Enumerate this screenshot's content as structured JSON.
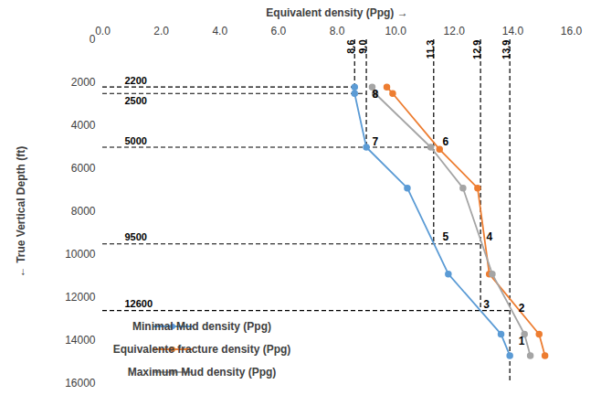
{
  "chart_data": {
    "type": "line",
    "x_label": "Equivalent density (Ppg)",
    "y_label": "True Vertical Depth (ft)",
    "xlim": [
      0,
      16
    ],
    "xticks": [
      {
        "value": 0,
        "label": "0.0"
      },
      {
        "value": 2,
        "label": "2.0"
      },
      {
        "value": 4,
        "label": "4.0"
      },
      {
        "value": 6,
        "label": "6.0"
      },
      {
        "value": 8,
        "label": "8.0"
      },
      {
        "value": 10,
        "label": "10.0"
      },
      {
        "value": 12,
        "label": "12.0"
      },
      {
        "value": 14,
        "label": "14.0"
      },
      {
        "value": 16,
        "label": "16.0"
      }
    ],
    "ylim": [
      0,
      16000
    ],
    "yticks": [
      0,
      2000,
      4000,
      6000,
      8000,
      10000,
      12000,
      14000,
      16000
    ],
    "grid": false,
    "legend": "bottom-left",
    "marker": "circle",
    "series": [
      {
        "name": "Minimal Mud density (Ppg)",
        "color": "#5b9bd5",
        "x": [
          8.6,
          8.6,
          9.0,
          10.4,
          11.8,
          13.6,
          13.9
        ],
        "values": [
          2200,
          2500,
          5000,
          6900,
          10900,
          13700,
          14700
        ]
      },
      {
        "name": "Equivalente fracture density (Ppg)",
        "color": "#ed7d31",
        "x": [
          9.7,
          9.9,
          11.5,
          12.8,
          13.2,
          14.9,
          15.1
        ],
        "values": [
          2200,
          2500,
          5100,
          6900,
          10900,
          13700,
          14700
        ]
      },
      {
        "name": "Maximum Mud density (Ppg)",
        "color": "#a5a5a5",
        "x": [
          9.2,
          9.3,
          11.2,
          12.3,
          13.3,
          14.4,
          14.6
        ],
        "values": [
          2200,
          2500,
          5000,
          6900,
          10900,
          13700,
          14700
        ]
      }
    ],
    "density_lines": [
      8.6,
      {
        "value": 9,
        "label": "9.0"
      },
      11.3,
      12.9,
      13.9
    ],
    "depth_lines": [
      2200,
      2500,
      5000,
      9500,
      12600
    ],
    "annotations": [
      {
        "text": "1",
        "x": 14.2,
        "y": 14040
      },
      {
        "text": "2",
        "x": 14.2,
        "y": 12500
      },
      {
        "text": "3",
        "x": 13.0,
        "y": 12340
      },
      {
        "text": "4",
        "x": 13.1,
        "y": 9190
      },
      {
        "text": "5",
        "x": 11.6,
        "y": 9190
      },
      {
        "text": "6",
        "x": 11.6,
        "y": 4770
      },
      {
        "text": "7",
        "x": 9.2,
        "y": 4770
      },
      {
        "text": "8",
        "x": 9.2,
        "y": 2550
      }
    ]
  }
}
